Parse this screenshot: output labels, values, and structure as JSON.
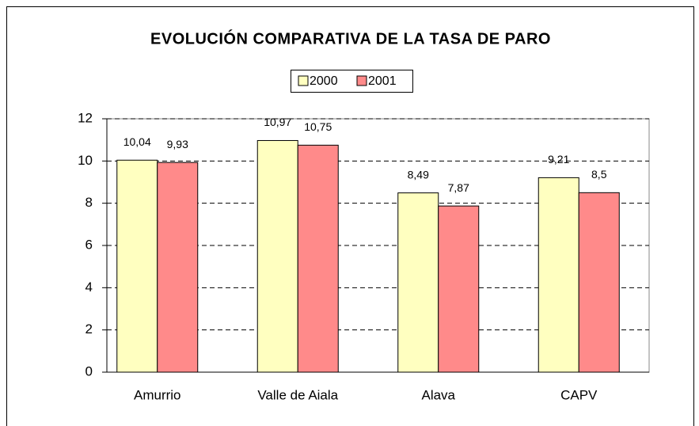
{
  "chart_data": {
    "type": "bar",
    "title": "EVOLUCIÓN COMPARATIVA DE LA TASA DE PARO",
    "categories": [
      "Amurrio",
      "Valle de Aiala",
      "Alava",
      "CAPV"
    ],
    "series": [
      {
        "name": "2000",
        "color": "#ffffc0",
        "values": [
          10.04,
          10.97,
          8.49,
          9.21
        ],
        "value_labels": [
          "10,04",
          "10,97",
          "8,49",
          "9,21"
        ]
      },
      {
        "name": "2001",
        "color": "#ff8a8a",
        "values": [
          9.93,
          10.75,
          7.87,
          8.5
        ],
        "value_labels": [
          "9,93",
          "10,75",
          "7,87",
          "8,5"
        ]
      }
    ],
    "ylim": [
      0,
      12
    ],
    "yticks": [
      0,
      2,
      4,
      6,
      8,
      10,
      12
    ],
    "grid": true,
    "legend": "top"
  }
}
